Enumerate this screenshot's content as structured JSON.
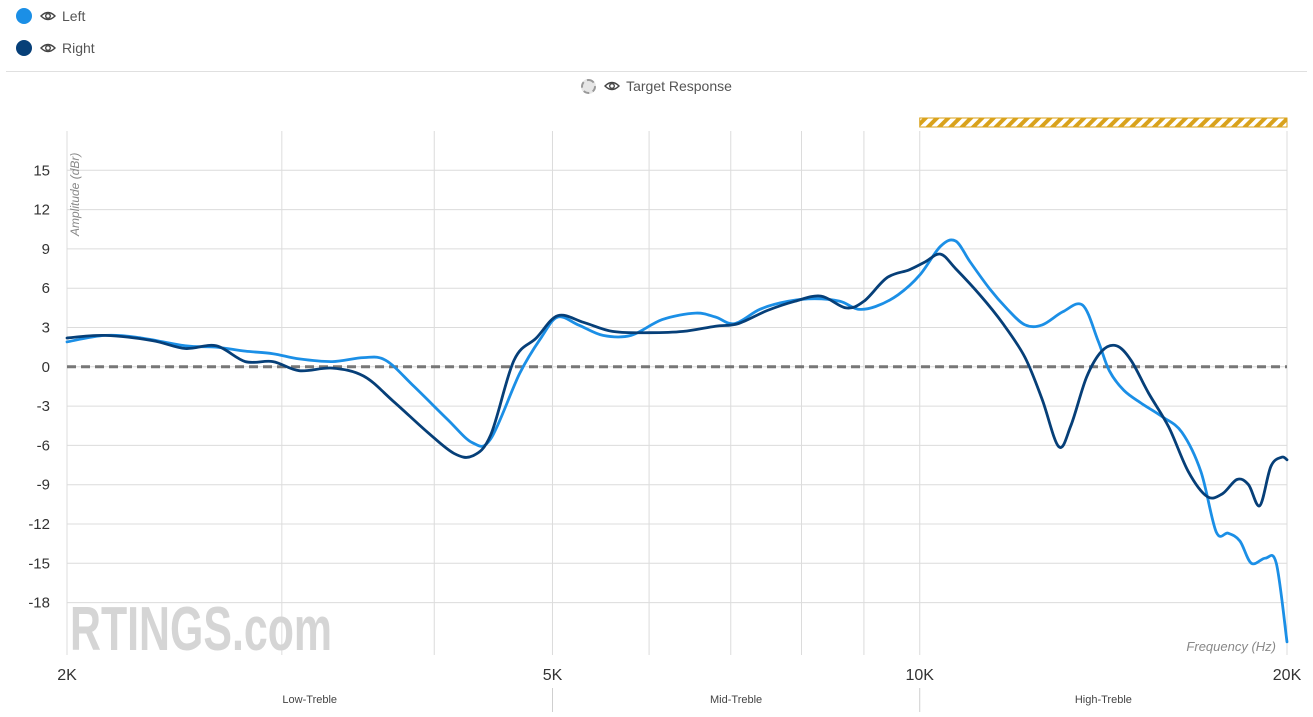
{
  "legend": {
    "items": [
      {
        "label": "Left",
        "color": "#1b8fe6"
      },
      {
        "label": "Right",
        "color": "#063f78"
      }
    ],
    "target_label": "Target Response"
  },
  "watermark": "RTINGS.com",
  "chart_data": {
    "type": "line",
    "title": "",
    "xlabel": "Frequency (Hz)",
    "ylabel": "Amplitude (dBr)",
    "x_scale": "log",
    "xlim": [
      2000,
      20000
    ],
    "ylim": [
      -22,
      18
    ],
    "x_ticks": [
      {
        "value": 2000,
        "label": "2K"
      },
      {
        "value": 5000,
        "label": "5K"
      },
      {
        "value": 10000,
        "label": "10K"
      },
      {
        "value": 20000,
        "label": "20K"
      }
    ],
    "x_gridlines": [
      2000,
      3000,
      4000,
      5000,
      6000,
      7000,
      8000,
      9000,
      10000,
      20000
    ],
    "y_ticks": [
      15,
      12,
      9,
      6,
      3,
      0,
      -3,
      -6,
      -9,
      -12,
      -15,
      -18
    ],
    "bands": [
      {
        "label": "Low-Treble",
        "from": 2000,
        "to": 5000
      },
      {
        "label": "Mid-Treble",
        "from": 5000,
        "to": 10000
      },
      {
        "label": "High-Treble",
        "from": 10000,
        "to": 20000
      }
    ],
    "highlight_range": [
      10000,
      20000
    ],
    "highlight_color": "#d9a21b",
    "target_line": 0,
    "grid": true,
    "series": [
      {
        "name": "Left",
        "color": "#1b8fe6",
        "points": [
          [
            2000,
            1.9
          ],
          [
            2150,
            2.4
          ],
          [
            2300,
            2.2
          ],
          [
            2500,
            1.6
          ],
          [
            2650,
            1.5
          ],
          [
            2800,
            1.2
          ],
          [
            2950,
            1.0
          ],
          [
            3100,
            0.6
          ],
          [
            3300,
            0.4
          ],
          [
            3500,
            0.7
          ],
          [
            3650,
            0.5
          ],
          [
            3850,
            -1.5
          ],
          [
            4100,
            -4.0
          ],
          [
            4300,
            -5.8
          ],
          [
            4450,
            -5.5
          ],
          [
            4700,
            -0.5
          ],
          [
            4900,
            2.3
          ],
          [
            5050,
            3.8
          ],
          [
            5250,
            3.2
          ],
          [
            5500,
            2.4
          ],
          [
            5800,
            2.4
          ],
          [
            6150,
            3.6
          ],
          [
            6550,
            4.1
          ],
          [
            6800,
            3.8
          ],
          [
            7050,
            3.3
          ],
          [
            7400,
            4.4
          ],
          [
            7800,
            5.0
          ],
          [
            8200,
            5.2
          ],
          [
            8600,
            5.0
          ],
          [
            8900,
            4.4
          ],
          [
            9200,
            4.6
          ],
          [
            9600,
            5.5
          ],
          [
            10000,
            7.0
          ],
          [
            10400,
            9.2
          ],
          [
            10700,
            9.6
          ],
          [
            11000,
            8.0
          ],
          [
            11400,
            6.0
          ],
          [
            11800,
            4.4
          ],
          [
            12200,
            3.2
          ],
          [
            12600,
            3.2
          ],
          [
            13100,
            4.2
          ],
          [
            13600,
            4.7
          ],
          [
            14000,
            2.0
          ],
          [
            14300,
            -0.3
          ],
          [
            14700,
            -1.8
          ],
          [
            15200,
            -2.8
          ],
          [
            15800,
            -3.8
          ],
          [
            16400,
            -5.0
          ],
          [
            17000,
            -8.0
          ],
          [
            17500,
            -12.6
          ],
          [
            17900,
            -12.7
          ],
          [
            18300,
            -13.3
          ],
          [
            18700,
            -15.0
          ],
          [
            19200,
            -14.6
          ],
          [
            19600,
            -15.0
          ],
          [
            20000,
            -21.0
          ]
        ]
      },
      {
        "name": "Right",
        "color": "#063f78",
        "points": [
          [
            2000,
            2.2
          ],
          [
            2150,
            2.4
          ],
          [
            2350,
            2.0
          ],
          [
            2500,
            1.4
          ],
          [
            2650,
            1.6
          ],
          [
            2800,
            0.4
          ],
          [
            2950,
            0.4
          ],
          [
            3100,
            -0.3
          ],
          [
            3300,
            -0.1
          ],
          [
            3500,
            -0.7
          ],
          [
            3700,
            -2.6
          ],
          [
            3950,
            -5.0
          ],
          [
            4150,
            -6.6
          ],
          [
            4300,
            -6.8
          ],
          [
            4450,
            -5.2
          ],
          [
            4650,
            0.5
          ],
          [
            4850,
            2.2
          ],
          [
            5050,
            3.9
          ],
          [
            5300,
            3.4
          ],
          [
            5600,
            2.7
          ],
          [
            6000,
            2.6
          ],
          [
            6400,
            2.7
          ],
          [
            6800,
            3.1
          ],
          [
            7100,
            3.3
          ],
          [
            7500,
            4.3
          ],
          [
            7900,
            5.0
          ],
          [
            8300,
            5.4
          ],
          [
            8700,
            4.5
          ],
          [
            9000,
            5.0
          ],
          [
            9400,
            6.8
          ],
          [
            9800,
            7.4
          ],
          [
            10100,
            8.0
          ],
          [
            10400,
            8.6
          ],
          [
            10700,
            7.5
          ],
          [
            11200,
            5.5
          ],
          [
            11700,
            3.3
          ],
          [
            12200,
            0.7
          ],
          [
            12600,
            -2.5
          ],
          [
            13000,
            -6.1
          ],
          [
            13300,
            -4.5
          ],
          [
            13700,
            -0.8
          ],
          [
            14100,
            1.2
          ],
          [
            14500,
            1.6
          ],
          [
            14900,
            0.5
          ],
          [
            15400,
            -2.0
          ],
          [
            16000,
            -4.6
          ],
          [
            16600,
            -8.0
          ],
          [
            17200,
            -9.9
          ],
          [
            17700,
            -9.7
          ],
          [
            18200,
            -8.6
          ],
          [
            18600,
            -9.0
          ],
          [
            19000,
            -10.6
          ],
          [
            19400,
            -7.6
          ],
          [
            19800,
            -6.9
          ],
          [
            20000,
            -7.1
          ]
        ]
      }
    ]
  }
}
